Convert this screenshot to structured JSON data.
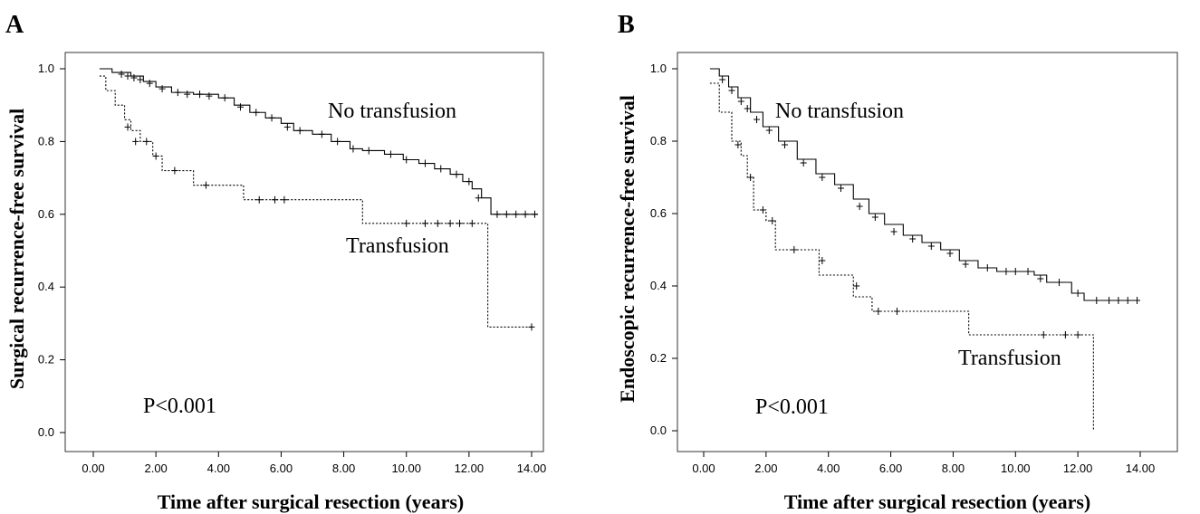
{
  "chart_data": [
    {
      "panel": "A",
      "type": "line",
      "subtype": "kaplan-meier",
      "xlabel": "Time after surgical resection (years)",
      "ylabel": "Surgical recurrence-free survival",
      "xlim": [
        0,
        14.5
      ],
      "ylim": [
        0,
        1.0
      ],
      "xticks": [
        "0.00",
        "2.00",
        "4.00",
        "6.00",
        "8.00",
        "10.00",
        "12.00",
        "14.00"
      ],
      "yticks": [
        "0.0",
        "0.2",
        "0.4",
        "0.6",
        "0.8",
        "1.0"
      ],
      "annotation": "P<0.001",
      "series": [
        {
          "name": "No transfusion",
          "style": "solid",
          "steps": [
            [
              0.2,
              1.0
            ],
            [
              0.6,
              0.99
            ],
            [
              1.2,
              0.98
            ],
            [
              1.6,
              0.965
            ],
            [
              2.0,
              0.95
            ],
            [
              2.5,
              0.935
            ],
            [
              3.2,
              0.93
            ],
            [
              4.0,
              0.92
            ],
            [
              4.5,
              0.9
            ],
            [
              5.0,
              0.88
            ],
            [
              5.5,
              0.865
            ],
            [
              6.0,
              0.85
            ],
            [
              6.4,
              0.83
            ],
            [
              7.0,
              0.82
            ],
            [
              7.6,
              0.8
            ],
            [
              8.2,
              0.78
            ],
            [
              8.6,
              0.775
            ],
            [
              9.3,
              0.765
            ],
            [
              9.9,
              0.75
            ],
            [
              10.4,
              0.74
            ],
            [
              10.9,
              0.725
            ],
            [
              11.4,
              0.71
            ],
            [
              11.8,
              0.69
            ],
            [
              12.1,
              0.67
            ],
            [
              12.4,
              0.645
            ],
            [
              12.7,
              0.6
            ],
            [
              14.2,
              0.6
            ]
          ],
          "censors": [
            [
              0.9,
              0.985
            ],
            [
              1.1,
              0.98
            ],
            [
              1.3,
              0.975
            ],
            [
              1.5,
              0.97
            ],
            [
              1.8,
              0.96
            ],
            [
              2.2,
              0.945
            ],
            [
              2.7,
              0.935
            ],
            [
              3.0,
              0.93
            ],
            [
              3.4,
              0.93
            ],
            [
              3.7,
              0.925
            ],
            [
              4.2,
              0.92
            ],
            [
              4.7,
              0.895
            ],
            [
              5.2,
              0.88
            ],
            [
              5.7,
              0.865
            ],
            [
              6.2,
              0.84
            ],
            [
              6.6,
              0.83
            ],
            [
              7.3,
              0.82
            ],
            [
              7.8,
              0.8
            ],
            [
              8.3,
              0.78
            ],
            [
              8.8,
              0.775
            ],
            [
              9.5,
              0.765
            ],
            [
              10.0,
              0.75
            ],
            [
              10.6,
              0.74
            ],
            [
              11.1,
              0.725
            ],
            [
              11.6,
              0.71
            ],
            [
              12.0,
              0.69
            ],
            [
              12.3,
              0.645
            ],
            [
              12.9,
              0.6
            ],
            [
              13.2,
              0.6
            ],
            [
              13.5,
              0.6
            ],
            [
              13.8,
              0.6
            ],
            [
              14.1,
              0.6
            ]
          ]
        },
        {
          "name": "Transfusion",
          "style": "dotted",
          "steps": [
            [
              0.2,
              0.98
            ],
            [
              0.4,
              0.94
            ],
            [
              0.7,
              0.9
            ],
            [
              1.0,
              0.86
            ],
            [
              1.2,
              0.83
            ],
            [
              1.5,
              0.8
            ],
            [
              1.9,
              0.76
            ],
            [
              2.2,
              0.72
            ],
            [
              3.2,
              0.68
            ],
            [
              4.8,
              0.64
            ],
            [
              8.6,
              0.575
            ],
            [
              12.6,
              0.29
            ],
            [
              14.0,
              0.29
            ]
          ],
          "censors": [
            [
              1.1,
              0.84
            ],
            [
              1.35,
              0.8
            ],
            [
              1.7,
              0.8
            ],
            [
              2.0,
              0.76
            ],
            [
              2.6,
              0.72
            ],
            [
              3.6,
              0.68
            ],
            [
              5.3,
              0.64
            ],
            [
              5.8,
              0.64
            ],
            [
              6.1,
              0.64
            ],
            [
              10.0,
              0.575
            ],
            [
              10.6,
              0.575
            ],
            [
              11.0,
              0.575
            ],
            [
              11.4,
              0.575
            ],
            [
              11.7,
              0.575
            ],
            [
              12.1,
              0.575
            ],
            [
              14.0,
              0.29
            ]
          ]
        }
      ]
    },
    {
      "panel": "B",
      "type": "line",
      "subtype": "kaplan-meier",
      "xlabel": "Time after surgical resection (years)",
      "ylabel": "Endoscopic recurrence-free survival",
      "xlim": [
        0,
        14.5
      ],
      "ylim": [
        0,
        1.0
      ],
      "xticks": [
        "0.00",
        "2.00",
        "4.00",
        "6.00",
        "8.00",
        "10.00",
        "12.00",
        "14.00"
      ],
      "yticks": [
        "0.0",
        "0.2",
        "0.4",
        "0.6",
        "0.8",
        "1.0"
      ],
      "annotation": "P<0.001",
      "series": [
        {
          "name": "No transfusion",
          "style": "solid",
          "steps": [
            [
              0.2,
              1.0
            ],
            [
              0.5,
              0.98
            ],
            [
              0.8,
              0.95
            ],
            [
              1.1,
              0.92
            ],
            [
              1.5,
              0.88
            ],
            [
              1.9,
              0.84
            ],
            [
              2.4,
              0.8
            ],
            [
              3.0,
              0.75
            ],
            [
              3.6,
              0.71
            ],
            [
              4.2,
              0.68
            ],
            [
              4.8,
              0.64
            ],
            [
              5.3,
              0.6
            ],
            [
              5.8,
              0.57
            ],
            [
              6.4,
              0.54
            ],
            [
              7.0,
              0.52
            ],
            [
              7.6,
              0.5
            ],
            [
              8.2,
              0.47
            ],
            [
              8.8,
              0.45
            ],
            [
              9.4,
              0.44
            ],
            [
              10.2,
              0.44
            ],
            [
              10.6,
              0.43
            ],
            [
              11.0,
              0.41
            ],
            [
              11.8,
              0.38
            ],
            [
              12.2,
              0.36
            ],
            [
              14.0,
              0.36
            ]
          ],
          "censors": [
            [
              0.6,
              0.97
            ],
            [
              0.9,
              0.94
            ],
            [
              1.2,
              0.91
            ],
            [
              1.4,
              0.89
            ],
            [
              1.7,
              0.86
            ],
            [
              2.1,
              0.83
            ],
            [
              2.6,
              0.79
            ],
            [
              3.2,
              0.74
            ],
            [
              3.8,
              0.7
            ],
            [
              4.4,
              0.67
            ],
            [
              5.0,
              0.62
            ],
            [
              5.5,
              0.59
            ],
            [
              6.1,
              0.55
            ],
            [
              6.7,
              0.53
            ],
            [
              7.3,
              0.51
            ],
            [
              7.9,
              0.49
            ],
            [
              8.4,
              0.46
            ],
            [
              9.1,
              0.45
            ],
            [
              9.7,
              0.44
            ],
            [
              10.0,
              0.44
            ],
            [
              10.4,
              0.44
            ],
            [
              10.8,
              0.42
            ],
            [
              11.4,
              0.41
            ],
            [
              12.0,
              0.38
            ],
            [
              12.6,
              0.36
            ],
            [
              13.0,
              0.36
            ],
            [
              13.3,
              0.36
            ],
            [
              13.6,
              0.36
            ],
            [
              13.9,
              0.36
            ]
          ]
        },
        {
          "name": "Transfusion",
          "style": "dotted",
          "steps": [
            [
              0.2,
              0.96
            ],
            [
              0.5,
              0.88
            ],
            [
              0.9,
              0.8
            ],
            [
              1.2,
              0.76
            ],
            [
              1.4,
              0.7
            ],
            [
              1.6,
              0.61
            ],
            [
              2.0,
              0.58
            ],
            [
              2.3,
              0.5
            ],
            [
              3.7,
              0.43
            ],
            [
              4.8,
              0.37
            ],
            [
              5.4,
              0.33
            ],
            [
              8.5,
              0.265
            ],
            [
              12.5,
              0.0
            ]
          ],
          "censors": [
            [
              1.1,
              0.79
            ],
            [
              1.5,
              0.7
            ],
            [
              1.9,
              0.61
            ],
            [
              2.2,
              0.58
            ],
            [
              2.9,
              0.5
            ],
            [
              3.8,
              0.47
            ],
            [
              4.9,
              0.4
            ],
            [
              5.6,
              0.33
            ],
            [
              6.2,
              0.33
            ],
            [
              10.9,
              0.265
            ],
            [
              11.6,
              0.265
            ],
            [
              12.0,
              0.265
            ]
          ]
        }
      ]
    }
  ],
  "panels": [
    {
      "letter": "A",
      "annot_no": "No transfusion",
      "annot_tr": "Transfusion",
      "pvalue": "P<0.001"
    },
    {
      "letter": "B",
      "annot_no": "No transfusion",
      "annot_tr": "Transfusion",
      "pvalue": "P<0.001"
    }
  ]
}
